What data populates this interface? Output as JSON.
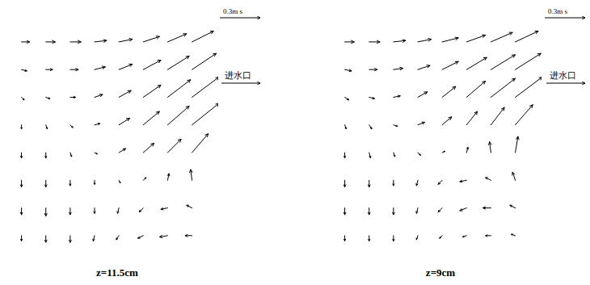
{
  "chart_data": [
    {
      "type": "quiver",
      "title": "z=11.5cm",
      "color": "#000000",
      "tick_labels": false,
      "xlim": [
        0,
        11
      ],
      "ylim": [
        0,
        11
      ],
      "x": [
        0.5,
        1.8,
        3.1,
        4.4,
        5.7,
        7.0,
        8.3,
        9.6
      ],
      "y": [
        9.6,
        8.3,
        7.0,
        5.7,
        4.4,
        3.1,
        1.8,
        0.5
      ],
      "u": [
        [
          0.06,
          0.07,
          0.08,
          0.09,
          0.1,
          0.12,
          0.14,
          0.16
        ],
        [
          0.04,
          0.05,
          0.06,
          0.08,
          0.1,
          0.13,
          0.16,
          0.18
        ],
        [
          0.02,
          0.03,
          0.04,
          0.06,
          0.09,
          0.13,
          0.17,
          0.2
        ],
        [
          0,
          0.01,
          0.02,
          0.04,
          0.08,
          0.12,
          0.16,
          0.2
        ],
        [
          0,
          0,
          0.01,
          0.02,
          0.05,
          0.08,
          0.1,
          0.12
        ],
        [
          0,
          0,
          0,
          0,
          0.01,
          0.02,
          0.01,
          -0.01
        ],
        [
          0,
          0,
          0,
          0,
          -0.01,
          -0.03,
          -0.05,
          -0.04
        ],
        [
          0,
          0,
          0,
          -0.01,
          -0.02,
          -0.04,
          -0.06,
          -0.05
        ]
      ],
      "v": [
        [
          0,
          0,
          0,
          0.01,
          0.02,
          0.04,
          0.06,
          0.08
        ],
        [
          -0.01,
          0,
          0,
          0.02,
          0.04,
          0.07,
          0.1,
          0.12
        ],
        [
          -0.02,
          -0.01,
          0,
          0.02,
          0.05,
          0.09,
          0.13,
          0.15
        ],
        [
          -0.03,
          -0.03,
          -0.02,
          0.01,
          0.05,
          0.1,
          0.14,
          0.16
        ],
        [
          -0.04,
          -0.04,
          -0.03,
          -0.01,
          0.03,
          0.07,
          0.1,
          0.14
        ],
        [
          -0.05,
          -0.05,
          -0.04,
          -0.03,
          -0.02,
          0.02,
          0.05,
          0.08
        ],
        [
          -0.05,
          -0.06,
          -0.05,
          -0.04,
          -0.04,
          -0.03,
          -0.01,
          0.02
        ],
        [
          -0.04,
          -0.05,
          -0.05,
          -0.04,
          -0.03,
          -0.02,
          -0.01,
          0
        ]
      ],
      "reference": {
        "value": 0.3,
        "label": "0.3m s"
      },
      "annotation": "进水口"
    },
    {
      "type": "quiver",
      "title": "z=9cm",
      "color": "#000000",
      "tick_labels": false,
      "xlim": [
        0,
        11
      ],
      "ylim": [
        0,
        11
      ],
      "x": [
        0.5,
        1.8,
        3.1,
        4.4,
        5.7,
        7.0,
        8.3,
        9.6
      ],
      "y": [
        9.6,
        8.3,
        7.0,
        5.7,
        4.4,
        3.1,
        1.8,
        0.5
      ],
      "u": [
        [
          0.07,
          0.08,
          0.09,
          0.1,
          0.12,
          0.14,
          0.16,
          0.17
        ],
        [
          0.05,
          0.06,
          0.07,
          0.09,
          0.12,
          0.15,
          0.18,
          0.19
        ],
        [
          0.03,
          0.04,
          0.05,
          0.07,
          0.1,
          0.14,
          0.18,
          0.2
        ],
        [
          0.01,
          0.02,
          0.03,
          0.05,
          0.07,
          0.08,
          0.1,
          0.13
        ],
        [
          0,
          0.01,
          0.01,
          0.02,
          0.02,
          0.01,
          -0.01,
          0.02
        ],
        [
          0,
          0,
          0,
          -0.01,
          -0.03,
          -0.05,
          -0.04,
          -0.02
        ],
        [
          0,
          0,
          0,
          -0.01,
          -0.03,
          -0.05,
          -0.06,
          -0.04
        ],
        [
          0,
          0,
          0,
          -0.01,
          -0.02,
          -0.03,
          -0.04,
          -0.03
        ]
      ],
      "v": [
        [
          0,
          0,
          0.01,
          0.02,
          0.03,
          0.05,
          0.07,
          0.08
        ],
        [
          -0.01,
          0,
          0.01,
          0.03,
          0.06,
          0.09,
          0.11,
          0.12
        ],
        [
          -0.02,
          -0.01,
          0.01,
          0.04,
          0.08,
          0.12,
          0.14,
          0.15
        ],
        [
          -0.03,
          -0.03,
          -0.01,
          0.02,
          0.06,
          0.1,
          0.13,
          0.15
        ],
        [
          -0.04,
          -0.04,
          -0.03,
          -0.02,
          0.01,
          0.04,
          0.08,
          0.12
        ],
        [
          -0.05,
          -0.05,
          -0.04,
          -0.04,
          -0.03,
          -0.01,
          0.02,
          0.06
        ],
        [
          -0.05,
          -0.05,
          -0.05,
          -0.04,
          -0.03,
          -0.02,
          0,
          0.02
        ],
        [
          -0.04,
          -0.04,
          -0.04,
          -0.03,
          -0.02,
          -0.01,
          0,
          0.01
        ]
      ],
      "reference": {
        "value": 0.3,
        "label": "0.3m s"
      },
      "annotation": "进水口"
    }
  ]
}
